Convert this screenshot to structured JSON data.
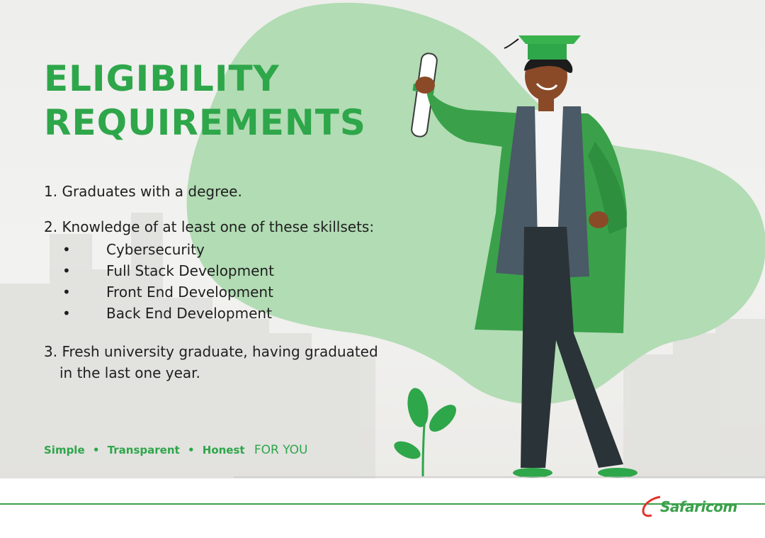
{
  "title": {
    "line1": "ELIGIBILITY",
    "line2": "REQUIREMENTS"
  },
  "requirements": {
    "item1": "1. Graduates with a degree.",
    "item2": "2. Knowledge of at least one of these skillsets:",
    "bullet": "•",
    "skills": [
      "Cybersecurity",
      "Full Stack Development",
      "Front End Development",
      "Back End Development"
    ],
    "item3_line1": "3. Fresh university graduate, having graduated",
    "item3_line2": "in the last one year."
  },
  "tagline": {
    "words": [
      "Simple",
      "Transparent",
      "Honest"
    ],
    "separator": "•",
    "suffix": "FOR YOU"
  },
  "brand": {
    "name": "Safaricom"
  },
  "colors": {
    "accent": "#2ea64a",
    "blob": "#b2dcb4",
    "gown": "#3aa14a",
    "text": "#1f1f1f"
  },
  "illustration": {
    "figure": "graduate-figure",
    "plant": "plant-icon"
  }
}
